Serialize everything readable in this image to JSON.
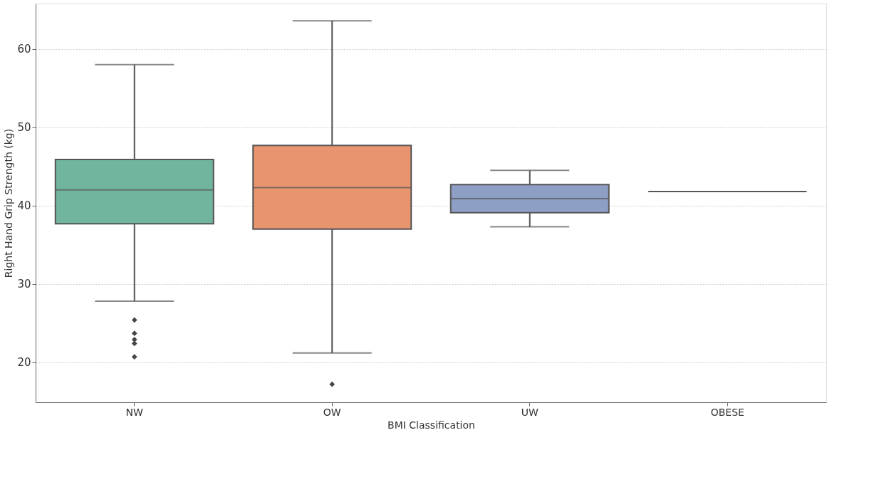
{
  "chart_data": {
    "type": "box",
    "xlabel": "BMI Classification",
    "ylabel": "Right Hand Grip Strength (kg)",
    "categories": [
      "NW",
      "OW",
      "UW",
      "OBESE"
    ],
    "boxes": [
      {
        "low": 27.8,
        "q1": 37.7,
        "median": 42.0,
        "q3": 45.9,
        "high": 58.0,
        "outliers": [
          25.4,
          23.7,
          22.9,
          22.4,
          20.7
        ]
      },
      {
        "low": 21.2,
        "q1": 37.0,
        "median": 42.3,
        "q3": 47.7,
        "high": 63.6,
        "outliers": [
          17.2
        ]
      },
      {
        "low": 37.3,
        "q1": 39.1,
        "median": 40.9,
        "q3": 42.7,
        "high": 44.5
      },
      {
        "low": 41.8,
        "q1": 41.8,
        "median": 41.8,
        "q3": 41.8,
        "high": 41.8
      }
    ],
    "colors": [
      "#72b59f",
      "#e8956f",
      "#8e9fc6",
      "#555555"
    ],
    "ylim": [
      14.9,
      65.8
    ],
    "yticks": [
      20,
      30,
      40,
      50,
      60
    ],
    "grid": "y",
    "marker": "diamond"
  }
}
